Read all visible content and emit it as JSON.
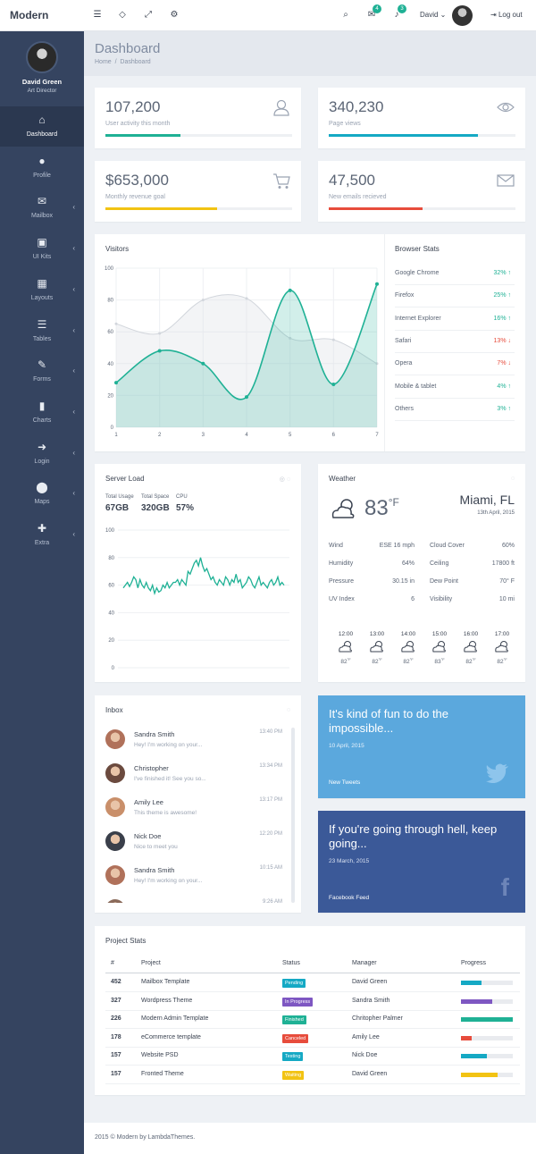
{
  "app": {
    "brand": "Modern"
  },
  "topbar": {
    "user_name": "David ⌄",
    "logout": "Log out",
    "mail_badge": "4",
    "bell_badge": "3"
  },
  "profile": {
    "name": "David Green",
    "role": "Art Director"
  },
  "sidebar": {
    "items": [
      {
        "label": "Dashboard",
        "icon": "home-icon",
        "glyph": "⌂"
      },
      {
        "label": "Profile",
        "icon": "user-icon",
        "glyph": "●"
      },
      {
        "label": "Mailbox",
        "icon": "mail-icon",
        "glyph": "✉"
      },
      {
        "label": "UI Kits",
        "icon": "briefcase-icon",
        "glyph": "▣"
      },
      {
        "label": "Layouts",
        "icon": "grid-icon",
        "glyph": "▦"
      },
      {
        "label": "Tables",
        "icon": "list-icon",
        "glyph": "☰"
      },
      {
        "label": "Forms",
        "icon": "edit-icon",
        "glyph": "✎"
      },
      {
        "label": "Charts",
        "icon": "bar-chart-icon",
        "glyph": "▮"
      },
      {
        "label": "Login",
        "icon": "login-icon",
        "glyph": "➜"
      },
      {
        "label": "Maps",
        "icon": "map-marker-icon",
        "glyph": "⬤"
      },
      {
        "label": "Extra",
        "icon": "gift-icon",
        "glyph": "✚"
      }
    ]
  },
  "page": {
    "title": "Dashboard",
    "breadcrumb_home": "Home",
    "breadcrumb_sep": "/",
    "breadcrumb_current": "Dashboard"
  },
  "stats": [
    {
      "value": "107,200",
      "label": "User activity this month",
      "progress": 0.4,
      "color": "#1fb195",
      "icon": "user-outline-icon"
    },
    {
      "value": "340,230",
      "label": "Page views",
      "progress": 0.8,
      "color": "#15a9c4",
      "icon": "eye-icon"
    },
    {
      "value": "$653,000",
      "label": "Monthly revenue goal",
      "progress": 0.6,
      "color": "#f2c313",
      "icon": "cart-icon"
    },
    {
      "value": "47,500",
      "label": "New emails recieved",
      "progress": 0.5,
      "color": "#e74c3c",
      "icon": "envelope-icon"
    }
  ],
  "visitors": {
    "title": "Visitors"
  },
  "chart_data": [
    {
      "type": "area",
      "x": [
        1,
        2,
        3,
        4,
        5,
        6,
        7
      ],
      "ylim": [
        0,
        100
      ],
      "yticks": [
        0,
        20,
        40,
        60,
        80,
        100
      ],
      "series": [
        {
          "values": [
            65,
            59,
            80,
            81,
            56,
            55,
            40
          ],
          "color": "#d2d6dc"
        },
        {
          "values": [
            28,
            48,
            40,
            19,
            86,
            27,
            90
          ],
          "color": "#1fb195"
        }
      ]
    },
    {
      "type": "line",
      "ylim": [
        0,
        100
      ],
      "yticks": [
        0,
        20,
        40,
        60,
        80,
        100
      ],
      "series": [
        {
          "values": [
            58,
            60,
            62,
            59,
            62,
            66,
            64,
            58,
            64,
            60,
            58,
            62,
            58,
            56,
            60,
            54,
            58,
            55,
            56,
            60,
            58,
            62,
            58,
            60,
            62,
            62,
            64,
            60,
            64,
            62,
            60,
            70,
            68,
            72,
            76,
            78,
            74,
            80,
            74,
            70,
            72,
            68,
            64,
            66,
            62,
            60,
            64,
            62,
            60,
            66,
            64,
            60,
            64,
            62,
            68,
            62,
            64,
            58,
            60,
            62,
            66,
            64,
            60,
            58,
            62,
            66,
            60,
            62,
            60,
            58,
            62,
            64,
            60,
            62,
            66,
            60,
            62,
            60
          ],
          "color": "#1fb195"
        }
      ]
    }
  ],
  "browser_stats": {
    "title": "Browser Stats",
    "items": [
      {
        "name": "Google Chrome",
        "value": "32%",
        "dir": "up"
      },
      {
        "name": "Firefox",
        "value": "25%",
        "dir": "up"
      },
      {
        "name": "Internet Explorer",
        "value": "16%",
        "dir": "up"
      },
      {
        "name": "Safari",
        "value": "13%",
        "dir": "down"
      },
      {
        "name": "Opera",
        "value": "7%",
        "dir": "down"
      },
      {
        "name": "Mobile & tablet",
        "value": "4%",
        "dir": "up"
      },
      {
        "name": "Others",
        "value": "3%",
        "dir": "up"
      }
    ]
  },
  "server": {
    "title": "Server Load",
    "usage_label": "Total Usage",
    "usage": "67GB",
    "space_label": "Total Space",
    "space": "320GB",
    "cpu_label": "CPU",
    "cpu": "57%"
  },
  "weather": {
    "title": "Weather",
    "temp": "83",
    "unit": "°F",
    "city": "Miami, FL",
    "date": "13th April, 2015",
    "details": [
      [
        "Wind",
        "ESE 16 mph",
        "Cloud Cover",
        "60%"
      ],
      [
        "Humidity",
        "64%",
        "Ceiling",
        "17800 ft"
      ],
      [
        "Pressure",
        "30.15 in",
        "Dew Point",
        "70° F"
      ],
      [
        "UV Index",
        "6",
        "Visibility",
        "10 mi"
      ]
    ],
    "forecast": [
      {
        "time": "12:00",
        "temp": "82",
        "unit": "°F"
      },
      {
        "time": "13:00",
        "temp": "82",
        "unit": "°F"
      },
      {
        "time": "14:00",
        "temp": "82",
        "unit": "°F"
      },
      {
        "time": "15:00",
        "temp": "83",
        "unit": "°F"
      },
      {
        "time": "16:00",
        "temp": "82",
        "unit": "°F"
      },
      {
        "time": "17:00",
        "temp": "82",
        "unit": "°F"
      }
    ]
  },
  "inbox": {
    "title": "Inbox",
    "items": [
      {
        "name": "Sandra Smith",
        "msg": "Hey! I'm working on your...",
        "time": "13:40 PM",
        "color": "#b0715a"
      },
      {
        "name": "Christopher",
        "msg": "I've finished it! See you so...",
        "time": "13:34 PM",
        "color": "#6b4a3e"
      },
      {
        "name": "Amily Lee",
        "msg": "This theme is awesome!",
        "time": "13:17 PM",
        "color": "#c98f6a"
      },
      {
        "name": "Nick Doe",
        "msg": "Nice to meet you",
        "time": "12:20 PM",
        "color": "#3a3f4a"
      },
      {
        "name": "Sandra Smith",
        "msg": "Hey! I'm working on your...",
        "time": "10:15 AM",
        "color": "#b0715a"
      },
      {
        "name": "",
        "msg": "",
        "time": "9:26 AM",
        "color": "#8a6a5a"
      }
    ]
  },
  "tweet": {
    "text": "It's kind of fun to do the impossible...",
    "date": "10 April, 2015",
    "footer": "New Tweets",
    "color": "#5ba8dd"
  },
  "facebook": {
    "text": "If you're going through hell, keep going...",
    "date": "23 March, 2015",
    "footer": "Facebook Feed",
    "color": "#3b5998"
  },
  "projects": {
    "title": "Project Stats",
    "headers": [
      "#",
      "Project",
      "Status",
      "Manager",
      "Progress"
    ],
    "rows": [
      {
        "id": "452",
        "project": "Mailbox Template",
        "status": "Pending",
        "status_color": "#15a9c4",
        "manager": "David Green",
        "progress": 0.4,
        "bar_color": "#15a9c4"
      },
      {
        "id": "327",
        "project": "Wordpress Theme",
        "status": "In Progress",
        "status_color": "#7e57c2",
        "manager": "Sandra Smith",
        "progress": 0.6,
        "bar_color": "#7e57c2"
      },
      {
        "id": "226",
        "project": "Modern Admin Template",
        "status": "Finished",
        "status_color": "#1fb195",
        "manager": "Chritopher Palmer",
        "progress": 1.0,
        "bar_color": "#1fb195"
      },
      {
        "id": "178",
        "project": "eCommerce template",
        "status": "Canceled",
        "status_color": "#e74c3c",
        "manager": "Amily Lee",
        "progress": 0.2,
        "bar_color": "#e74c3c"
      },
      {
        "id": "157",
        "project": "Website PSD",
        "status": "Testing",
        "status_color": "#15a9c4",
        "manager": "Nick Doe",
        "progress": 0.5,
        "bar_color": "#15a9c4"
      },
      {
        "id": "157",
        "project": "Fronted Theme",
        "status": "Waiting",
        "status_color": "#f2c313",
        "manager": "David Green",
        "progress": 0.7,
        "bar_color": "#f2c313"
      }
    ]
  },
  "footer": {
    "text": "2015 © Modern by LambdaThemes."
  }
}
